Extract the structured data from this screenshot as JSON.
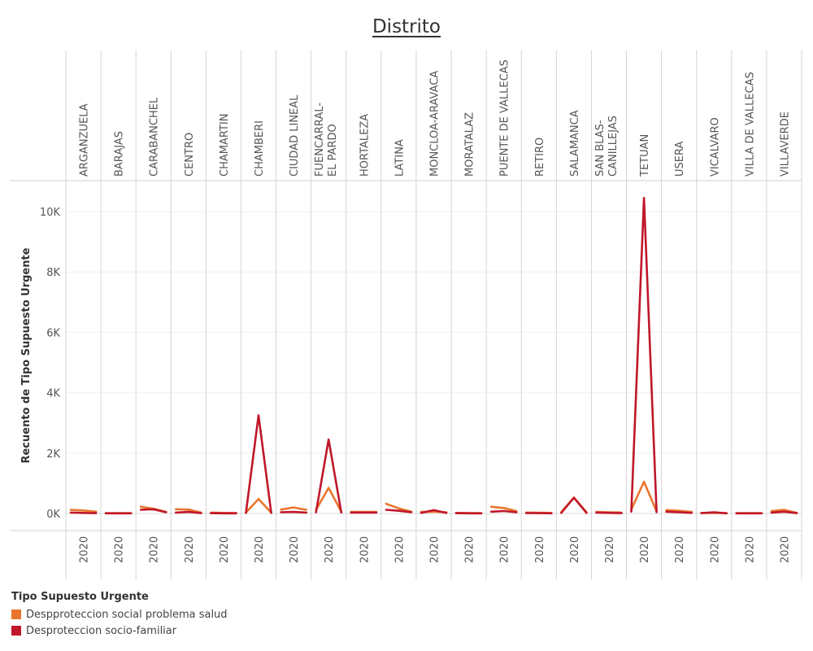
{
  "chart_data": {
    "type": "line",
    "title": "Distrito",
    "xlabel": "",
    "ylabel": "Recuento de Tipo Supuesto Urgente",
    "ylim": [
      0,
      11000
    ],
    "yticks": [
      0,
      2000,
      4000,
      6000,
      8000,
      10000
    ],
    "ytick_labels": [
      "0K",
      "2K",
      "4K",
      "6K",
      "8K",
      "10K"
    ],
    "year_label": "2020",
    "categories": [
      "ARGANZUELA",
      "BARAJAS",
      "CARABANCHEL",
      "CENTRO",
      "CHAMARTIN",
      "CHAMBERI",
      "CIUDAD LINEAL",
      "FUENCARRAL-EL PARDO",
      "HORTALEZA",
      "LATINA",
      "MONCLOA-ARAVACA",
      "MORATALAZ",
      "PUENTE DE VALLECAS",
      "RETIRO",
      "SALAMANCA",
      "SAN BLAS-CANILLEJAS",
      "TETUAN",
      "USERA",
      "VICALVARO",
      "VILLA DE VALLECAS",
      "VILLAVERDE"
    ],
    "series": [
      {
        "name": "Despproteccion social problema salud",
        "color": "#e8762c",
        "values": [
          [
            120,
            100,
            60
          ],
          [
            10,
            10,
            10
          ],
          [
            220,
            160,
            50
          ],
          [
            140,
            130,
            30
          ],
          [
            30,
            20,
            15
          ],
          [
            30,
            480,
            30
          ],
          [
            130,
            200,
            120
          ],
          [
            120,
            850,
            60
          ],
          [
            50,
            50,
            50
          ],
          [
            320,
            170,
            60
          ],
          [
            50,
            60,
            40
          ],
          [
            20,
            15,
            10
          ],
          [
            220,
            180,
            80
          ],
          [
            30,
            25,
            20
          ],
          [
            40,
            530,
            40
          ],
          [
            50,
            40,
            30
          ],
          [
            130,
            1050,
            70
          ],
          [
            110,
            90,
            50
          ],
          [
            20,
            15,
            10
          ],
          [
            10,
            10,
            10
          ],
          [
            80,
            120,
            20
          ]
        ]
      },
      {
        "name": "Desproteccion socio-familiar",
        "color": "#c0172a",
        "values": [
          [
            30,
            20,
            10
          ],
          [
            5,
            5,
            5
          ],
          [
            120,
            140,
            40
          ],
          [
            30,
            50,
            10
          ],
          [
            10,
            5,
            5
          ],
          [
            20,
            3250,
            20
          ],
          [
            40,
            50,
            30
          ],
          [
            40,
            2450,
            30
          ],
          [
            30,
            30,
            30
          ],
          [
            120,
            90,
            40
          ],
          [
            20,
            110,
            20
          ],
          [
            10,
            5,
            5
          ],
          [
            60,
            80,
            40
          ],
          [
            15,
            10,
            5
          ],
          [
            20,
            520,
            20
          ],
          [
            30,
            20,
            10
          ],
          [
            60,
            10450,
            40
          ],
          [
            60,
            40,
            20
          ],
          [
            10,
            40,
            5
          ],
          [
            5,
            5,
            5
          ],
          [
            30,
            60,
            10
          ]
        ]
      }
    ],
    "legend": {
      "title": "Tipo Supuesto Urgente",
      "placement": "bottom-left"
    }
  },
  "legend_labels": [
    "Despproteccion social problema salud",
    "Desproteccion socio-familiar"
  ]
}
